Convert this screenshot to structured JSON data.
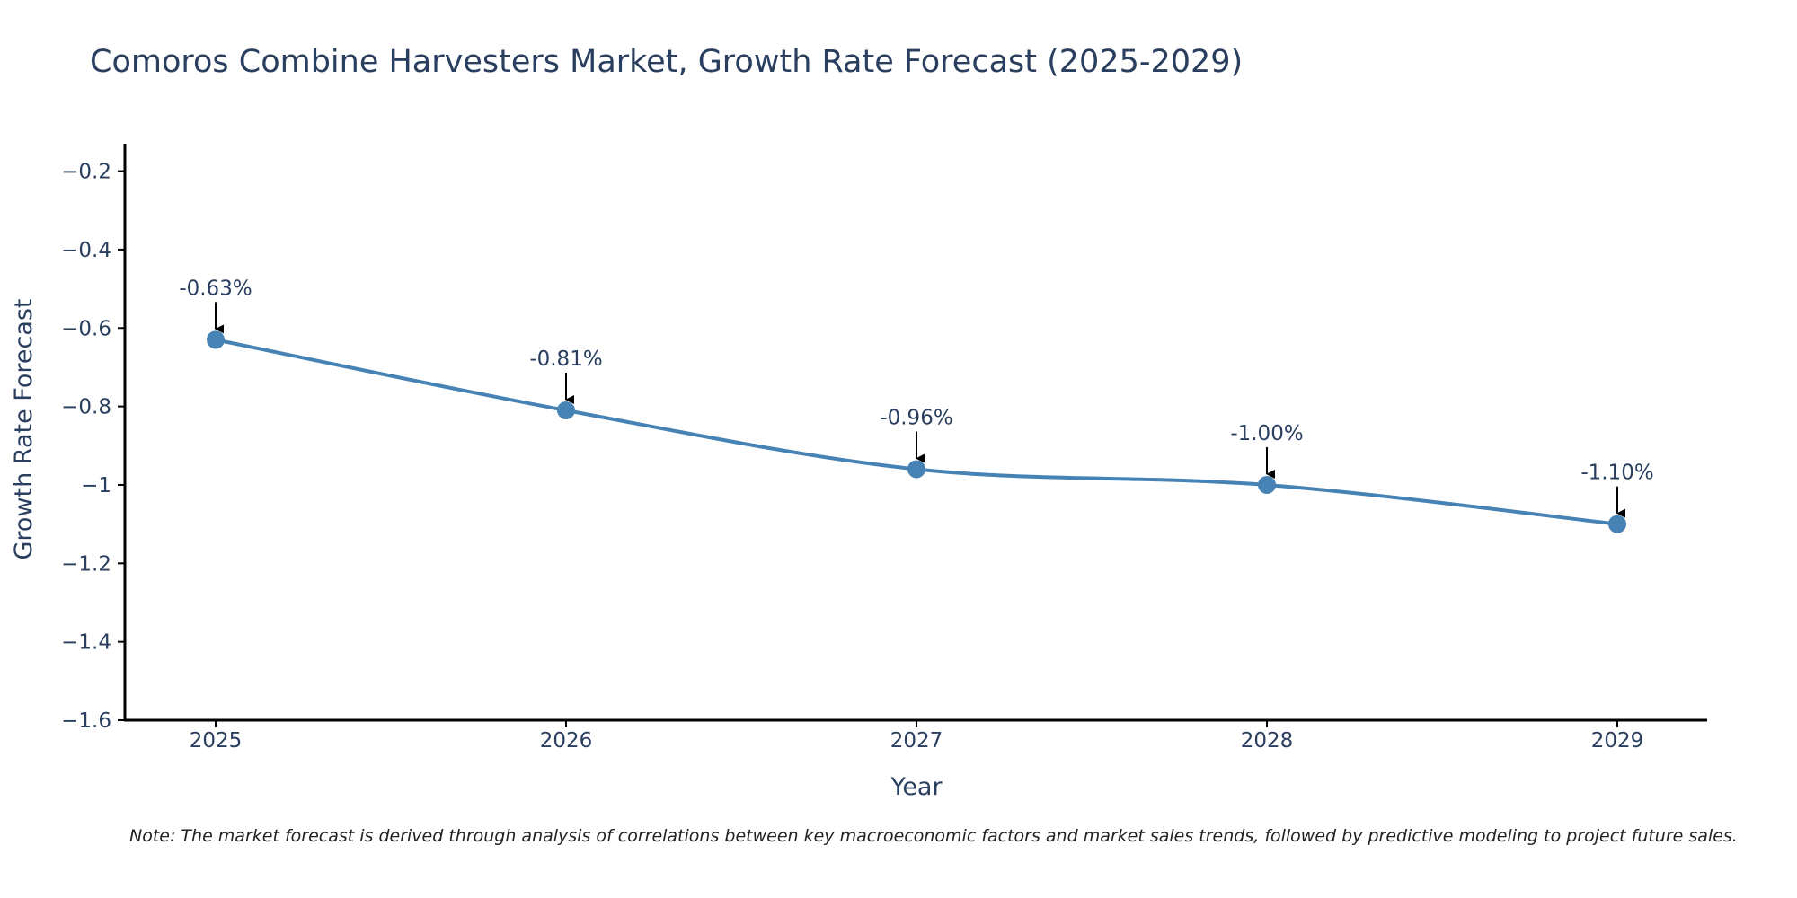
{
  "chart_data": {
    "type": "line",
    "title": "Comoros Combine Harvesters Market, Growth Rate Forecast (2025-2029)",
    "xlabel": "Year",
    "ylabel": "Growth Rate Forecast",
    "categories": [
      "2025",
      "2026",
      "2027",
      "2028",
      "2029"
    ],
    "series": [
      {
        "name": "Growth Rate Forecast",
        "values": [
          -0.63,
          -0.81,
          -0.96,
          -1.0,
          -1.1
        ]
      }
    ],
    "annotations": [
      "-0.63%",
      "-0.81%",
      "-0.96%",
      "-1.00%",
      "-1.10%"
    ],
    "ylim": [
      -1.6,
      -0.13
    ],
    "yticks": [
      -0.2,
      -0.4,
      -0.6,
      -0.8,
      -1,
      -1.2,
      -1.4,
      -1.6
    ],
    "ytick_labels": [
      "−0.2",
      "−0.4",
      "−0.6",
      "−0.8",
      "−1",
      "−1.2",
      "−1.4",
      "−1.6"
    ],
    "grid": false,
    "line_color": "#4682b4"
  },
  "note": "Note: The market forecast is derived through analysis of correlations between key macroeconomic factors and market sales trends, followed by predictive modeling to project future sales."
}
